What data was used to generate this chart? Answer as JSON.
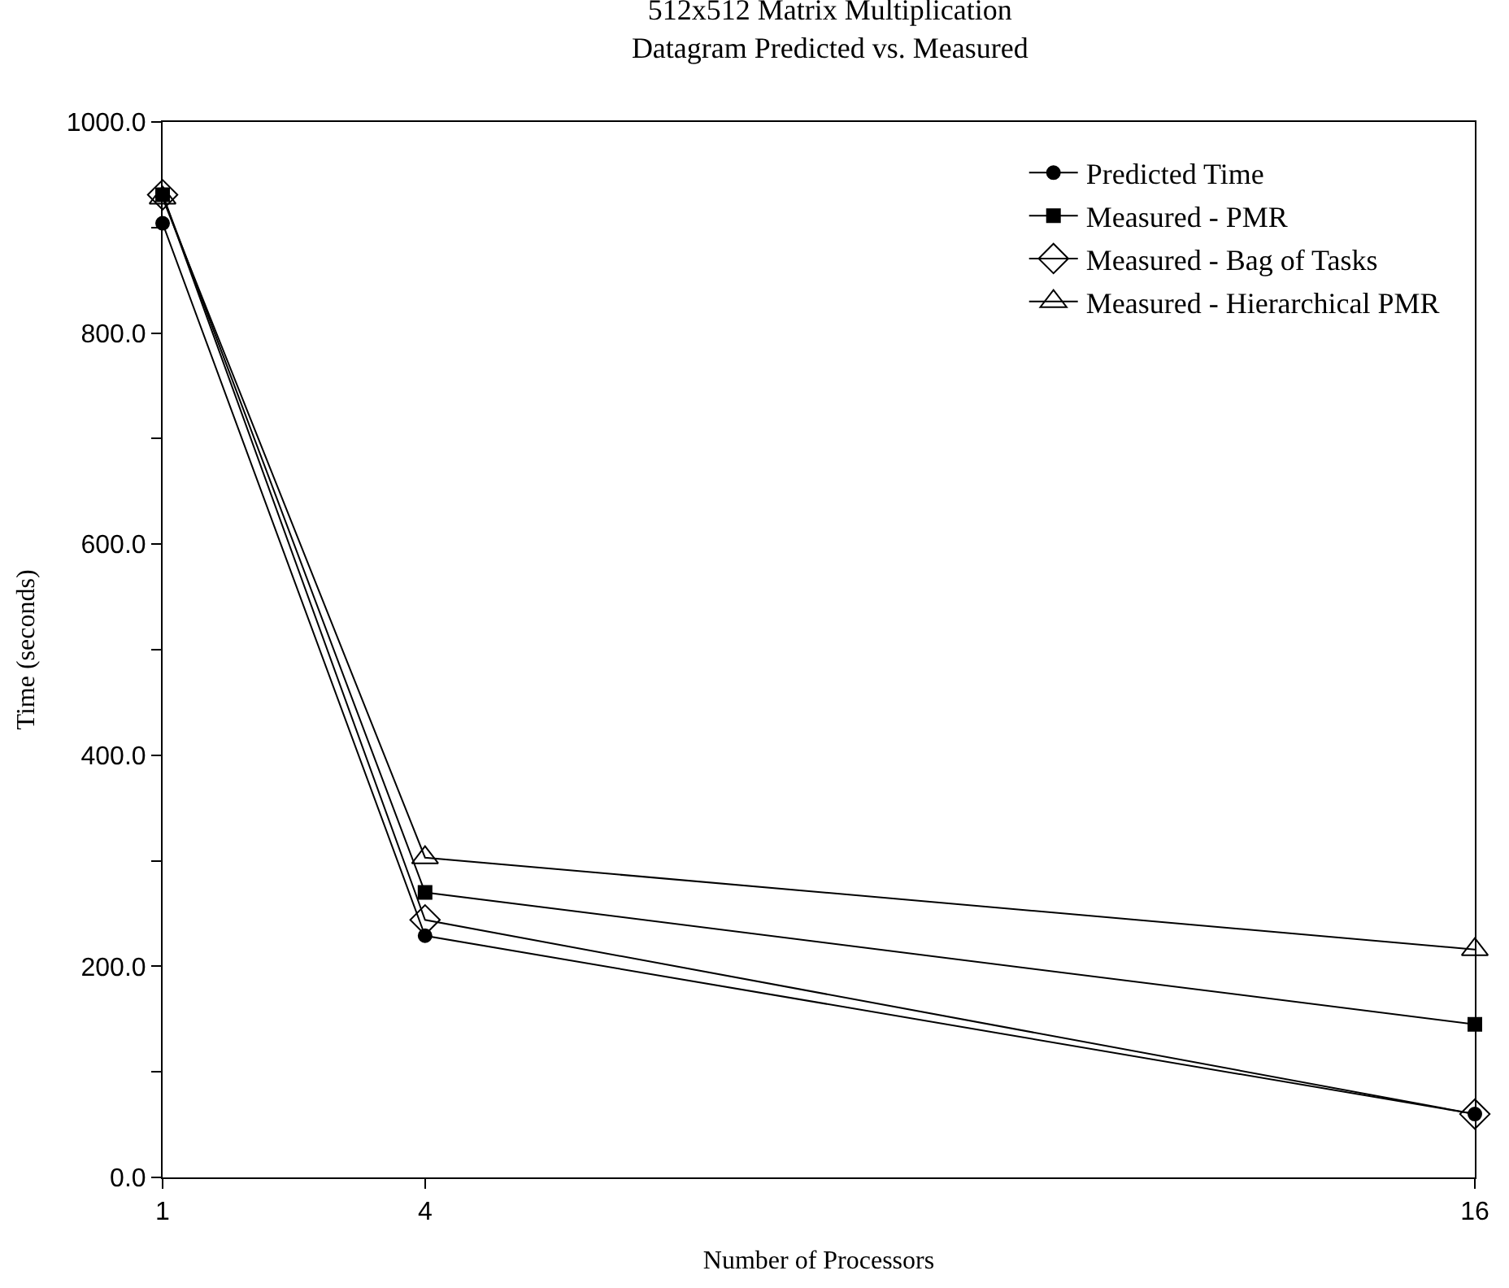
{
  "chart_data": {
    "type": "line",
    "title": "512x512 Matrix Multiplication",
    "subtitle": "Datagram Predicted vs. Measured",
    "xlabel": "Number of Processors",
    "ylabel": "Time (seconds)",
    "x": [
      1,
      4,
      16
    ],
    "xlim": [
      1,
      16
    ],
    "xticks": [
      1,
      4,
      16
    ],
    "ylim": [
      0,
      1000
    ],
    "yticks": [
      {
        "value": 0,
        "label": "0.0"
      },
      {
        "value": 100,
        "label": null
      },
      {
        "value": 200,
        "label": "200.0"
      },
      {
        "value": 300,
        "label": null
      },
      {
        "value": 400,
        "label": "400.0"
      },
      {
        "value": 500,
        "label": null
      },
      {
        "value": 600,
        "label": "600.0"
      },
      {
        "value": 700,
        "label": null
      },
      {
        "value": 800,
        "label": "800.0"
      },
      {
        "value": 900,
        "label": null
      },
      {
        "value": 1000,
        "label": "1000.0"
      }
    ],
    "legend": "top right",
    "line_style": "solid",
    "series": [
      {
        "name": "Predicted Time",
        "color": "#000000",
        "marker": "circle",
        "values": [
          904,
          229,
          60
        ]
      },
      {
        "name": "Measured - PMR",
        "color": "#000000",
        "marker": "square",
        "values": [
          931,
          270,
          145
        ]
      },
      {
        "name": "Measured - Bag of Tasks",
        "color": "#000000",
        "marker": "diamond",
        "values": [
          931,
          244,
          60
        ]
      },
      {
        "name": "Measured - Hierarchical PMR",
        "color": "#000000",
        "marker": "triangle",
        "values": [
          928,
          303,
          216
        ]
      }
    ]
  }
}
